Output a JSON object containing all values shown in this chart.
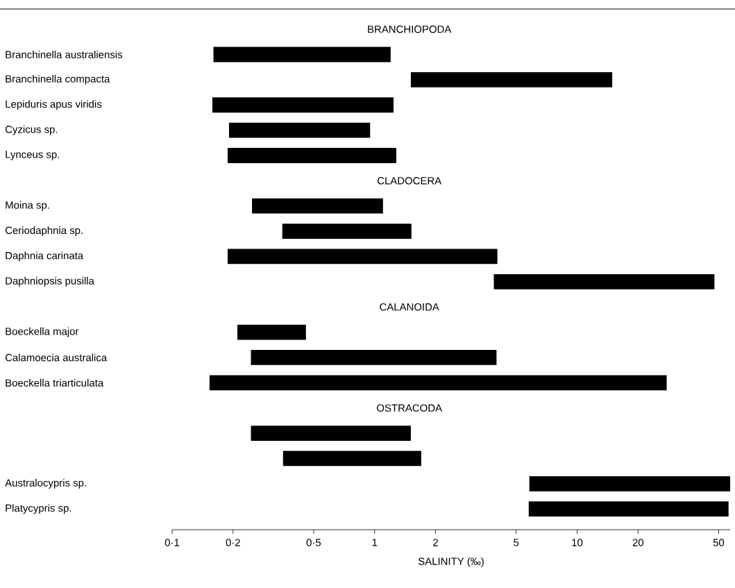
{
  "chart_data": {
    "type": "bar",
    "orientation": "horizontal",
    "xlabel": "SALINITY  (‰)",
    "annotations": [
      "BRANCHIOPODA",
      "CLADOCERA",
      "CALANOIDA",
      "OSTRACODA"
    ],
    "categories": [
      null,
      "Branchinella australiensis",
      "Branchinella compacta",
      "Lepiduris apus viridis",
      "Cyzicus sp.",
      "Lynceus sp.",
      null,
      "Moina sp.",
      "Ceriodaphnia sp.",
      "Daphnia carinata",
      "Daphniopsis pusilla",
      null,
      "Boeckella major",
      "Calamoecia australica",
      "Boeckella triarticulata",
      null,
      null,
      null,
      "Australocypris sp.",
      "Platycypris sp."
    ],
    "base": [
      null,
      0.16,
      1.51,
      0.158,
      0.191,
      0.188,
      null,
      0.248,
      0.35,
      0.188,
      3.88,
      null,
      0.21,
      0.245,
      0.153,
      null,
      0.245,
      0.353,
      5.81,
      5.77
    ],
    "values": [
      null,
      1.04,
      13.4,
      1.082,
      0.759,
      1.092,
      null,
      0.852,
      1.17,
      3.852,
      43.8,
      null,
      0.248,
      3.755,
      27.55,
      null,
      1.265,
      1.347,
      51.2,
      50.2
    ],
    "color": "#000000",
    "log": "x",
    "xlim": [
      0.1,
      57
    ],
    "xticks": [
      {
        "value": 0.1,
        "label": "0·1"
      },
      {
        "value": 0.2,
        "label": "0·2"
      },
      {
        "value": 0.5,
        "label": "0·5"
      },
      {
        "value": 1,
        "label": "1"
      },
      {
        "value": 2,
        "label": "2"
      },
      {
        "value": 5,
        "label": "5"
      },
      {
        "value": 10,
        "label": "10"
      },
      {
        "value": 20,
        "label": "20"
      },
      {
        "value": 50,
        "label": "50"
      }
    ]
  }
}
